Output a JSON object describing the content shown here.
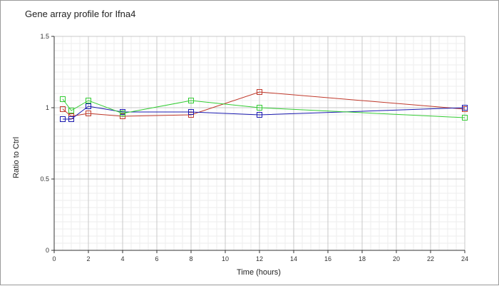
{
  "chart_data": {
    "type": "line",
    "title": "Gene array profile for Ifna4",
    "xlabel": "Time (hours)",
    "ylabel": "Ratio to Ctrl",
    "xlim": [
      0,
      24
    ],
    "ylim": [
      0,
      1.5
    ],
    "xticks": [
      0,
      2,
      4,
      6,
      8,
      10,
      12,
      14,
      16,
      18,
      20,
      22,
      24
    ],
    "yticks": [
      0,
      0.5,
      1,
      1.5
    ],
    "ytick_labels": [
      "0",
      "0.5",
      "1",
      "1.5"
    ],
    "grid": true,
    "series": [
      {
        "color": "#c0392b",
        "x": [
          0.5,
          1,
          2,
          4,
          8,
          12,
          24
        ],
        "y": [
          0.99,
          0.94,
          0.96,
          0.94,
          0.95,
          1.11,
          0.99
        ]
      },
      {
        "color": "#1a1ab0",
        "x": [
          0.5,
          1,
          2,
          4,
          8,
          12,
          24
        ],
        "y": [
          0.92,
          0.92,
          1.01,
          0.97,
          0.97,
          0.95,
          1.0
        ]
      },
      {
        "color": "#33cc33",
        "x": [
          0.5,
          1,
          2,
          4,
          8,
          12,
          24
        ],
        "y": [
          1.06,
          0.98,
          1.05,
          0.96,
          1.05,
          1.0,
          0.93
        ]
      }
    ]
  }
}
